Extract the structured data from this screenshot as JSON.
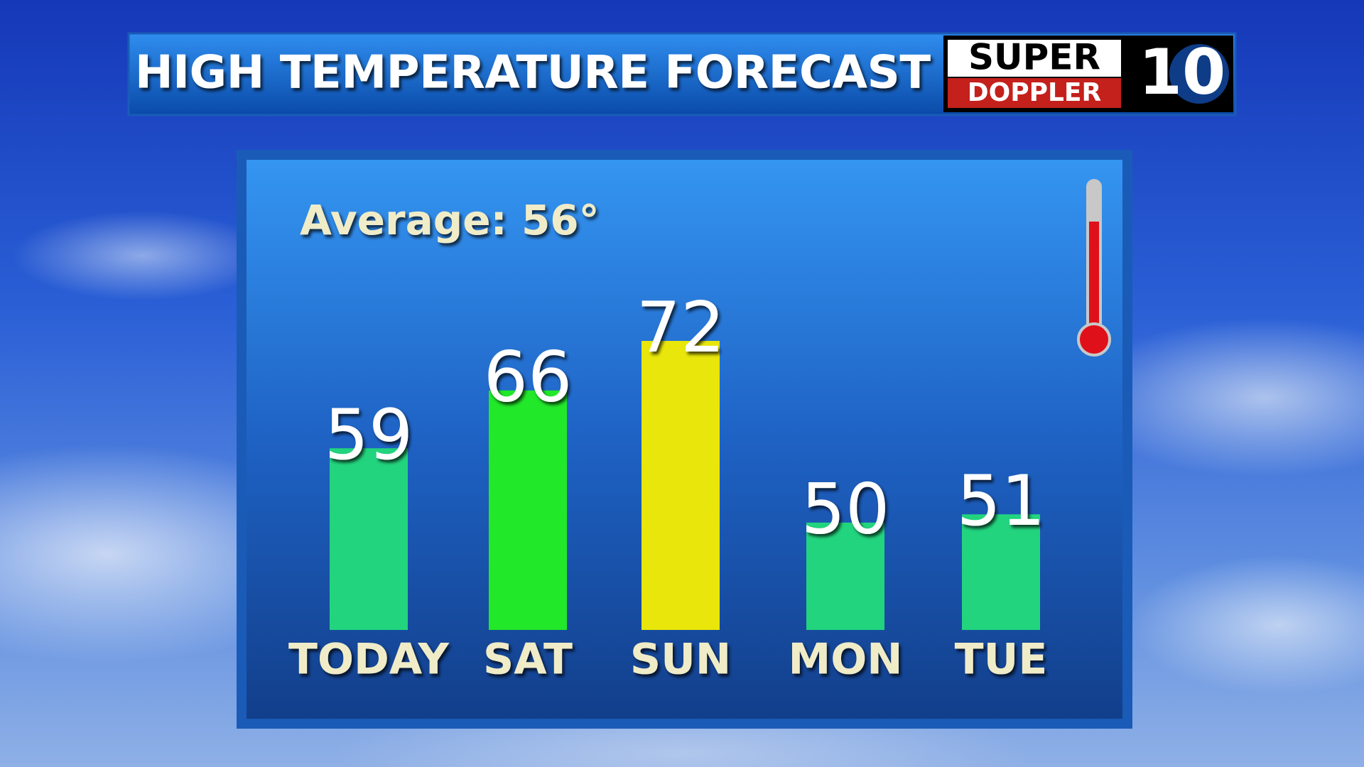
{
  "header": {
    "title": "HIGH TEMPERATURE FORECAST",
    "logo": {
      "top": "SUPER",
      "bottom": "DOPPLER",
      "number": "10"
    }
  },
  "chart_data": {
    "type": "bar",
    "annotation": "Average: 56°",
    "categories": [
      "TODAY",
      "SAT",
      "SUN",
      "MON",
      "TUE"
    ],
    "values": [
      59,
      66,
      72,
      50,
      51
    ],
    "colors": [
      "#22d47e",
      "#22e82a",
      "#e8e60a",
      "#22d47e",
      "#22d47e"
    ],
    "ylim": [
      37,
      80
    ]
  }
}
